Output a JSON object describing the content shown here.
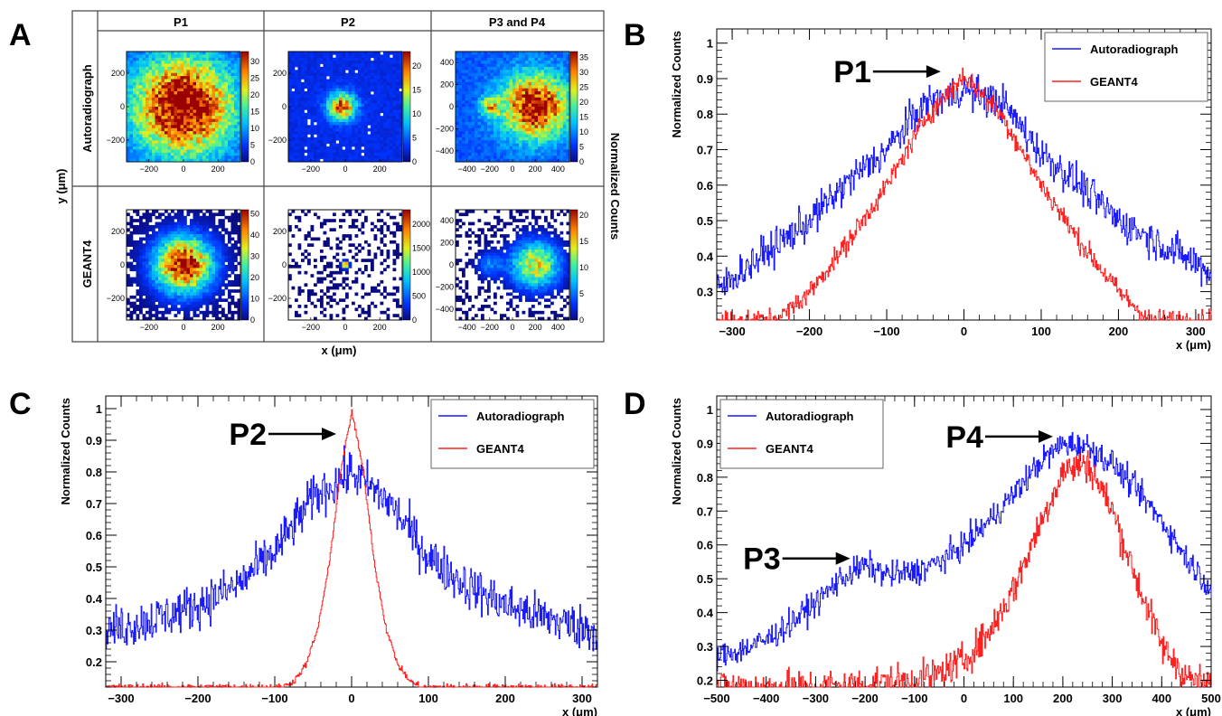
{
  "panel_letters": {
    "a": "A",
    "b": "B",
    "c": "C",
    "d": "D"
  },
  "grid": {
    "columns": [
      "P1",
      "P2",
      "P3 and P4"
    ],
    "rows": [
      "Autoradiograph",
      "GEANT4"
    ],
    "xlabel": "x (μm)",
    "ylabel": "y (μm)",
    "colorbar_label": "Normalized Counts"
  },
  "colors": {
    "autoradiograph": "#1a1aff",
    "geant4": "#ff2020"
  },
  "chart_data": [
    {
      "id": "A",
      "type": "heatmap",
      "cells": [
        {
          "row": "Autoradiograph",
          "col": "P1",
          "xticks": [
            -200,
            0,
            200
          ],
          "yticks": [
            200,
            0,
            -200
          ],
          "xlim": [
            -330,
            330
          ],
          "ylim": [
            -330,
            330
          ],
          "colorbar_ticks": [
            30,
            25,
            20,
            15,
            10,
            5,
            0
          ],
          "colorbar_max": 33,
          "blobs": [
            {
              "x": 0,
              "y": 0,
              "sigma": 200,
              "amp": 1
            }
          ],
          "background": 0.15,
          "sparsity": 0.0
        },
        {
          "row": "Autoradiograph",
          "col": "P2",
          "xticks": [
            -200,
            0,
            200
          ],
          "yticks": [
            200,
            0,
            -200
          ],
          "xlim": [
            -330,
            330
          ],
          "ylim": [
            -330,
            330
          ],
          "colorbar_ticks": [
            20,
            15,
            10,
            5,
            0
          ],
          "colorbar_max": 23,
          "blobs": [
            {
              "x": -20,
              "y": 0,
              "sigma": 55,
              "amp": 0.8
            }
          ],
          "background": 0.12,
          "sparsity": 0.35
        },
        {
          "row": "Autoradiograph",
          "col": "P3 and P4",
          "xticks": [
            -400,
            -200,
            0,
            200,
            400
          ],
          "yticks": [
            400,
            200,
            0,
            -200,
            -400
          ],
          "xlim": [
            -500,
            500
          ],
          "ylim": [
            -500,
            500
          ],
          "colorbar_ticks": [
            35,
            30,
            25,
            20,
            15,
            10,
            5,
            0
          ],
          "colorbar_max": 37,
          "blobs": [
            {
              "x": 200,
              "y": 0,
              "sigma": 200,
              "amp": 0.85
            },
            {
              "x": -200,
              "y": 0,
              "sigma": 60,
              "amp": 0.45
            }
          ],
          "background": 0.2,
          "sparsity": 0.05
        },
        {
          "row": "GEANT4",
          "col": "P1",
          "xticks": [
            -200,
            0,
            200
          ],
          "yticks": [
            200,
            0,
            -200
          ],
          "xlim": [
            -330,
            330
          ],
          "ylim": [
            -330,
            330
          ],
          "colorbar_ticks": [
            50,
            40,
            30,
            20,
            10,
            0
          ],
          "colorbar_max": 52,
          "blobs": [
            {
              "x": 0,
              "y": 0,
              "sigma": 120,
              "amp": 1
            }
          ],
          "background": 0.0,
          "sparsity": 0.25
        },
        {
          "row": "GEANT4",
          "col": "P2",
          "xticks": [
            -200,
            0,
            200
          ],
          "yticks": [
            200,
            0,
            -200
          ],
          "xlim": [
            -330,
            330
          ],
          "ylim": [
            -330,
            330
          ],
          "colorbar_ticks": [
            2000,
            1500,
            1000,
            500,
            0
          ],
          "colorbar_max": 2300,
          "blobs": [
            {
              "x": 0,
              "y": 0,
              "sigma": 14,
              "amp": 1
            }
          ],
          "background": 0.0,
          "sparsity": 0.6
        },
        {
          "row": "GEANT4",
          "col": "P3 and P4",
          "xticks": [
            -400,
            -200,
            0,
            200,
            400
          ],
          "yticks": [
            400,
            200,
            0,
            -200,
            -400
          ],
          "xlim": [
            -500,
            500
          ],
          "ylim": [
            -500,
            500
          ],
          "colorbar_ticks": [
            20,
            15,
            10,
            5,
            0
          ],
          "colorbar_max": 21,
          "blobs": [
            {
              "x": 200,
              "y": 0,
              "sigma": 150,
              "amp": 0.7
            },
            {
              "x": -200,
              "y": 0,
              "sigma": 80,
              "amp": 0.25
            }
          ],
          "background": 0.0,
          "sparsity": 0.55
        }
      ]
    },
    {
      "id": "B",
      "type": "line",
      "xlabel": "x (μm)",
      "ylabel": "Normalized Counts",
      "xlim": [
        -320,
        320
      ],
      "ylim": [
        0.22,
        1.04
      ],
      "xticks": [
        -300,
        -200,
        -100,
        0,
        100,
        200,
        300
      ],
      "yticks": [
        0.3,
        0.4,
        0.5,
        0.6,
        0.7,
        0.8,
        0.9,
        1
      ],
      "legend": {
        "position": "top-right"
      },
      "annotation": {
        "text": "P1",
        "x": -30,
        "y": 0.92
      },
      "series": [
        {
          "name": "Autoradiograph",
          "color": "#1a1aff",
          "x": [
            -320,
            -300,
            -250,
            -200,
            -150,
            -100,
            -50,
            0,
            50,
            100,
            150,
            200,
            250,
            300,
            320
          ],
          "y": [
            0.3,
            0.34,
            0.42,
            0.5,
            0.61,
            0.7,
            0.83,
            0.87,
            0.83,
            0.69,
            0.6,
            0.5,
            0.44,
            0.38,
            0.35
          ],
          "noise": 0.05
        },
        {
          "name": "GEANT4",
          "color": "#ff2020",
          "x": [
            -320,
            -250,
            -230,
            -200,
            -150,
            -100,
            -50,
            0,
            50,
            100,
            150,
            200,
            220,
            240,
            320
          ],
          "y": [
            0.22,
            0.22,
            0.24,
            0.3,
            0.44,
            0.6,
            0.79,
            0.91,
            0.79,
            0.6,
            0.44,
            0.3,
            0.26,
            0.22,
            0.22
          ],
          "noise": 0.03
        }
      ]
    },
    {
      "id": "C",
      "type": "line",
      "xlabel": "x (μm)",
      "ylabel": "Normalized Counts",
      "xlim": [
        -320,
        320
      ],
      "ylim": [
        0.12,
        1.04
      ],
      "xticks": [
        -300,
        -200,
        -100,
        0,
        100,
        200,
        300
      ],
      "yticks": [
        0.2,
        0.3,
        0.4,
        0.5,
        0.6,
        0.7,
        0.8,
        0.9,
        1
      ],
      "legend": {
        "position": "top-right"
      },
      "annotation": {
        "text": "P2",
        "x": -20,
        "y": 0.92
      },
      "series": [
        {
          "name": "Autoradiograph",
          "color": "#1a1aff",
          "x": [
            -320,
            -300,
            -250,
            -200,
            -150,
            -100,
            -50,
            0,
            50,
            100,
            150,
            200,
            250,
            300,
            320
          ],
          "y": [
            0.3,
            0.31,
            0.34,
            0.38,
            0.44,
            0.55,
            0.72,
            0.8,
            0.7,
            0.53,
            0.44,
            0.38,
            0.34,
            0.31,
            0.3
          ],
          "noise": 0.07
        },
        {
          "name": "GEANT4",
          "color": "#ff2020",
          "x": [
            -320,
            -90,
            -75,
            -60,
            -45,
            -30,
            -15,
            0,
            15,
            30,
            45,
            60,
            75,
            90,
            320
          ],
          "y": [
            0.12,
            0.12,
            0.14,
            0.19,
            0.3,
            0.5,
            0.8,
            0.99,
            0.8,
            0.5,
            0.3,
            0.19,
            0.14,
            0.12,
            0.12
          ],
          "noise": 0.01
        }
      ]
    },
    {
      "id": "D",
      "type": "line",
      "xlabel": "x (μm)",
      "ylabel": "Normalized Counts",
      "xlim": [
        -500,
        500
      ],
      "ylim": [
        0.18,
        1.04
      ],
      "xticks": [
        -500,
        -400,
        -300,
        -200,
        -100,
        0,
        100,
        200,
        300,
        400,
        500
      ],
      "yticks": [
        0.2,
        0.3,
        0.4,
        0.5,
        0.6,
        0.7,
        0.8,
        0.9,
        1
      ],
      "legend": {
        "position": "top-left"
      },
      "annotations": [
        {
          "text": "P3",
          "x": -230,
          "y": 0.56
        },
        {
          "text": "P4",
          "x": 180,
          "y": 0.92
        }
      ],
      "series": [
        {
          "name": "Autoradiograph",
          "color": "#1a1aff",
          "x": [
            -500,
            -450,
            -400,
            -350,
            -300,
            -250,
            -200,
            -150,
            -100,
            -50,
            0,
            50,
            100,
            150,
            200,
            250,
            300,
            350,
            400,
            450,
            500
          ],
          "y": [
            0.27,
            0.29,
            0.32,
            0.37,
            0.43,
            0.5,
            0.54,
            0.51,
            0.52,
            0.55,
            0.6,
            0.67,
            0.75,
            0.84,
            0.9,
            0.89,
            0.84,
            0.76,
            0.67,
            0.56,
            0.47
          ],
          "noise": 0.04
        },
        {
          "name": "GEANT4",
          "color": "#ff2020",
          "x": [
            -500,
            -300,
            -200,
            -100,
            -50,
            0,
            50,
            100,
            150,
            200,
            250,
            300,
            350,
            400,
            450,
            500
          ],
          "y": [
            0.18,
            0.18,
            0.19,
            0.2,
            0.22,
            0.26,
            0.34,
            0.47,
            0.65,
            0.82,
            0.84,
            0.7,
            0.49,
            0.3,
            0.21,
            0.18
          ],
          "noise": 0.05
        }
      ]
    }
  ]
}
